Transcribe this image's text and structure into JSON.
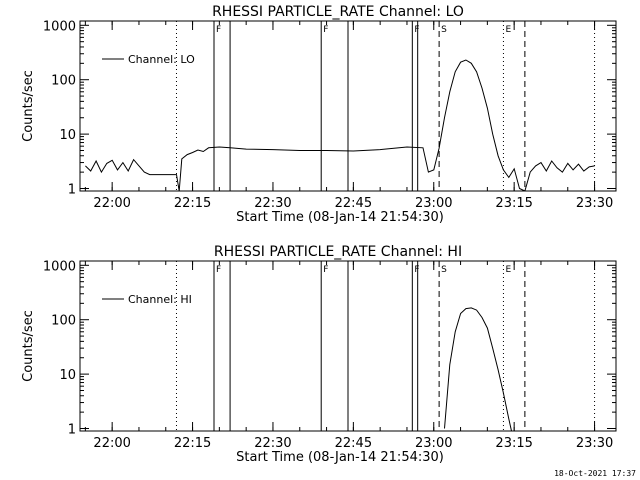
{
  "chart_data": [
    {
      "type": "line",
      "title": "RHESSI PARTICLE_RATE Channel: LO",
      "xlabel": "Start Time (08-Jan-14 21:54:30)",
      "ylabel": "Counts/sec",
      "yscale": "log",
      "ylim": [
        0.9,
        1200
      ],
      "xlim": [
        "21:54:30",
        "23:34:30"
      ],
      "x_ticks": [
        "22:00",
        "22:15",
        "22:30",
        "22:45",
        "23:00",
        "23:15",
        "23:30"
      ],
      "y_ticks": [
        "1",
        "10",
        "100",
        "1000"
      ],
      "legend": {
        "label": "Channel: LO",
        "position": "top-left"
      },
      "markers": {
        "solid": [
          "22:19",
          "22:22",
          "22:39",
          "22:44",
          "22:56",
          "22:57"
        ],
        "dashed": [
          "23:01",
          "23:17"
        ],
        "dotted": [
          "22:12",
          "23:13",
          "23:30"
        ],
        "labels": [
          {
            "text": "F",
            "time": "22:19"
          },
          {
            "text": "F",
            "time": "22:39"
          },
          {
            "text": "F",
            "time": "22:56"
          },
          {
            "text": "S",
            "time": "23:01"
          },
          {
            "text": "E",
            "time": "23:13"
          }
        ]
      },
      "series": [
        {
          "name": "Channel: LO",
          "x": [
            "21:55",
            "21:56",
            "21:57",
            "21:58",
            "21:59",
            "22:00",
            "22:01",
            "22:02",
            "22:03",
            "22:04",
            "22:05",
            "22:06",
            "22:07",
            "22:08",
            "22:09",
            "22:10",
            "22:11",
            "22:12",
            "22:12.5",
            "22:13",
            "22:14",
            "22:15",
            "22:16",
            "22:17",
            "22:18",
            "22:20",
            "22:22",
            "22:25",
            "22:30",
            "22:35",
            "22:40",
            "22:45",
            "22:50",
            "22:55",
            "22:58",
            "22:59",
            "23:00",
            "23:01",
            "23:02",
            "23:03",
            "23:04",
            "23:05",
            "23:06",
            "23:07",
            "23:08",
            "23:09",
            "23:10",
            "23:11",
            "23:12",
            "23:13",
            "23:14",
            "23:15",
            "23:16",
            "23:17",
            "23:18",
            "23:19",
            "23:20",
            "23:21",
            "23:22",
            "23:23",
            "23:24",
            "23:25",
            "23:26",
            "23:27",
            "23:28",
            "23:29",
            "23:30"
          ],
          "y": [
            2.6,
            2.1,
            3.2,
            2.0,
            2.9,
            3.3,
            2.2,
            3.0,
            2.1,
            3.4,
            2.6,
            2.0,
            1.8,
            1.8,
            1.8,
            1.8,
            1.8,
            1.8,
            0.9,
            3.5,
            4.2,
            4.6,
            5.1,
            4.8,
            5.6,
            5.8,
            5.6,
            5.3,
            5.2,
            5.0,
            5.0,
            4.9,
            5.2,
            5.8,
            5.6,
            2.0,
            2.2,
            5.5,
            20,
            60,
            140,
            210,
            230,
            200,
            140,
            70,
            30,
            10,
            4.0,
            2.2,
            1.6,
            2.3,
            1.0,
            0.9,
            2.0,
            2.6,
            3.0,
            2.1,
            3.2,
            2.4,
            2.0,
            2.9,
            2.2,
            2.8,
            2.1,
            2.5,
            2.6
          ]
        }
      ]
    },
    {
      "type": "line",
      "title": "RHESSI PARTICLE_RATE Channel: HI",
      "xlabel": "Start Time (08-Jan-14 21:54:30)",
      "ylabel": "Counts/sec",
      "yscale": "log",
      "ylim": [
        0.9,
        1200
      ],
      "xlim": [
        "21:54:30",
        "23:34:30"
      ],
      "x_ticks": [
        "22:00",
        "22:15",
        "22:30",
        "22:45",
        "23:00",
        "23:15",
        "23:30"
      ],
      "y_ticks": [
        "1",
        "10",
        "100",
        "1000"
      ],
      "legend": {
        "label": "Channel: HI",
        "position": "top-left"
      },
      "markers": {
        "solid": [
          "22:19",
          "22:22",
          "22:39",
          "22:44",
          "22:56",
          "22:57"
        ],
        "dashed": [
          "23:01",
          "23:17"
        ],
        "dotted": [
          "22:12",
          "23:13",
          "23:30"
        ],
        "labels": [
          {
            "text": "F",
            "time": "22:19"
          },
          {
            "text": "F",
            "time": "22:39"
          },
          {
            "text": "F",
            "time": "22:56"
          },
          {
            "text": "S",
            "time": "23:01"
          },
          {
            "text": "E",
            "time": "23:13"
          }
        ]
      },
      "series": [
        {
          "name": "Channel: HI",
          "x": [
            "23:02",
            "23:03",
            "23:04",
            "23:05",
            "23:06",
            "23:07",
            "23:08",
            "23:09",
            "23:10",
            "23:11",
            "23:12",
            "23:13",
            "23:14",
            "23:14.5"
          ],
          "y": [
            1.0,
            15,
            60,
            130,
            160,
            165,
            150,
            110,
            70,
            30,
            12,
            4.5,
            1.5,
            0.9
          ]
        }
      ]
    }
  ],
  "footer": "18-Oct-2021 17:37"
}
